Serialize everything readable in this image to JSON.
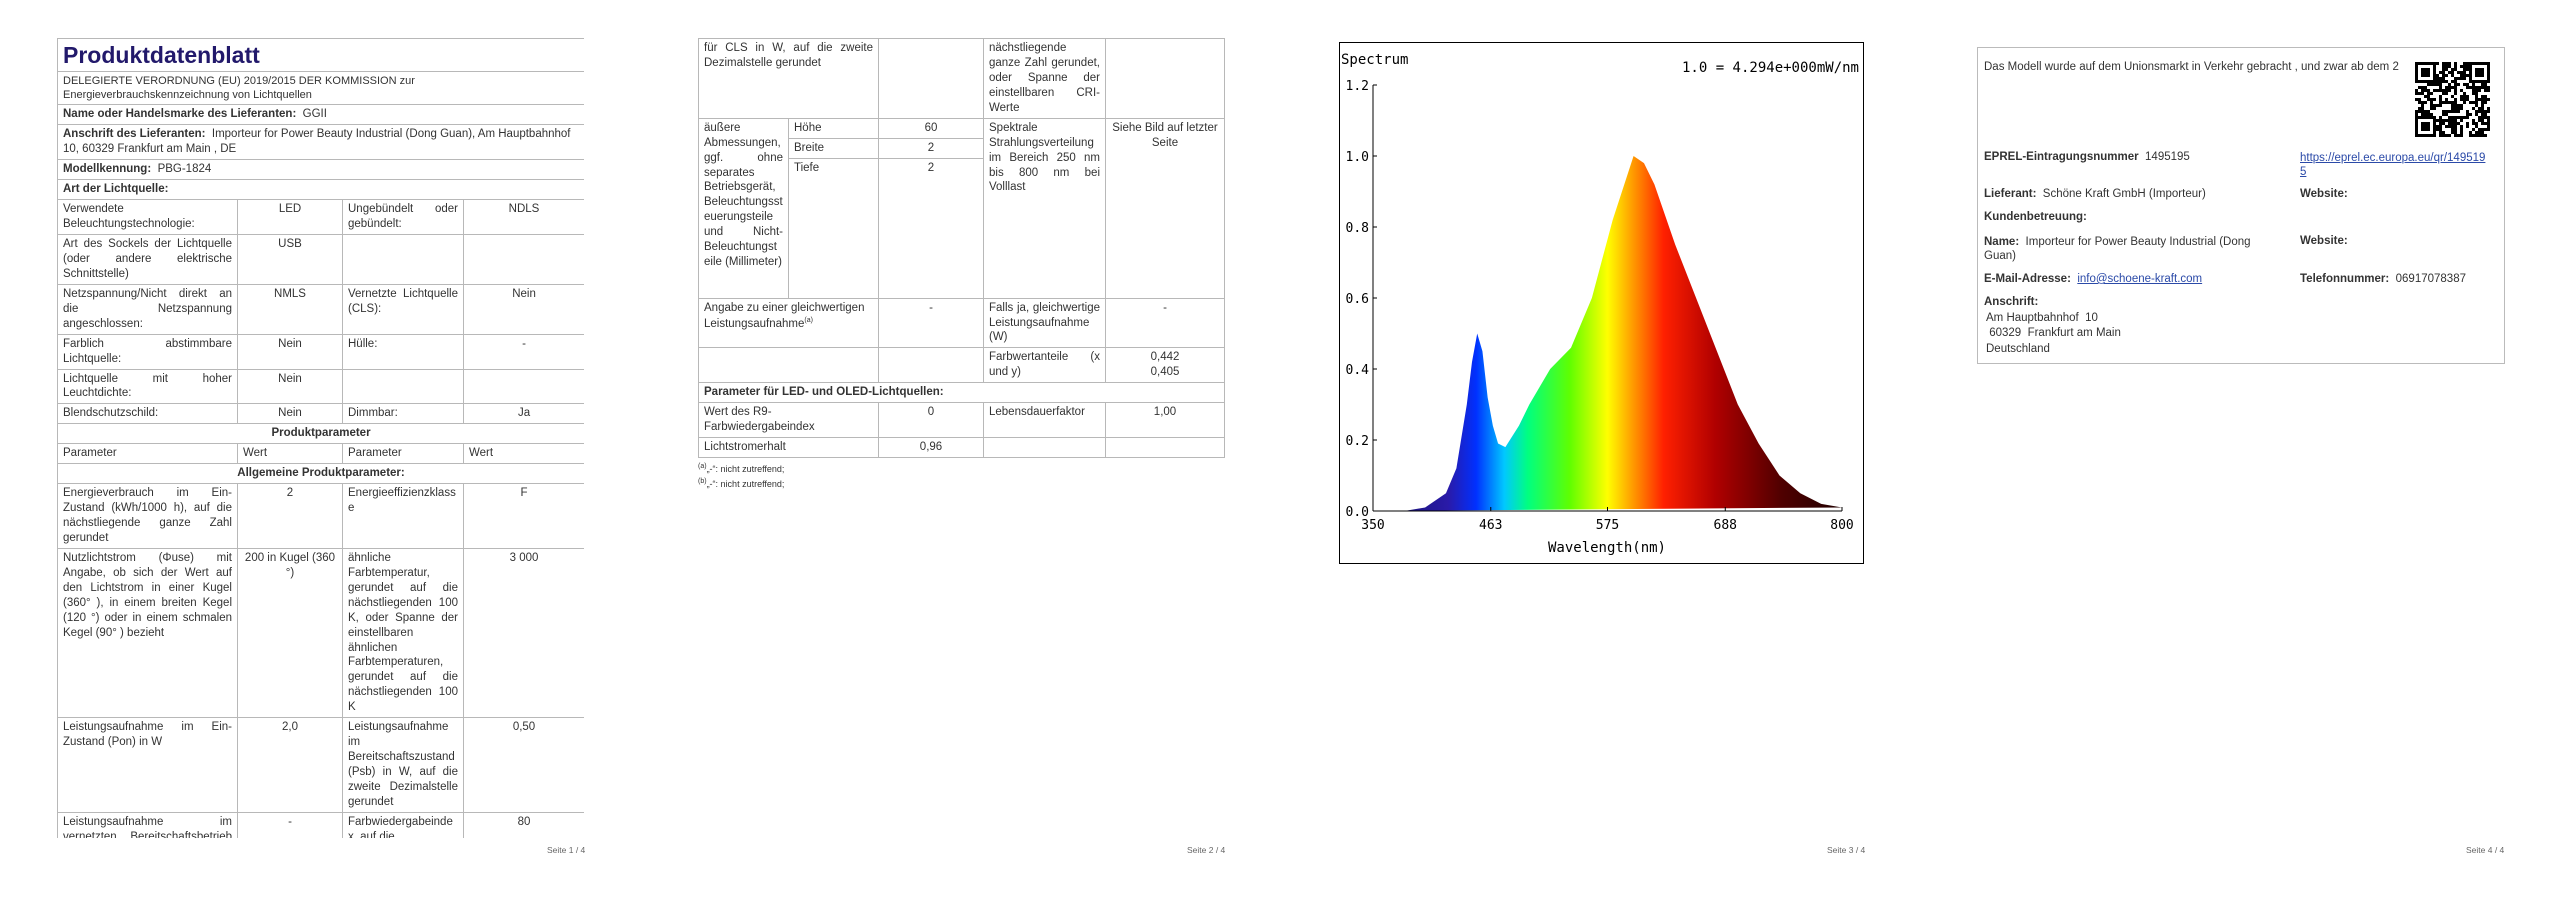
{
  "page1": {
    "title": "Produktdatenblatt",
    "regulation": "DELEGIERTE VERORDNUNG (EU) 2019/2015 DER KOMMISSION zur Energieverbrauchskennzeichnung von Lichtquellen",
    "supplier_name": {
      "label": "Name oder Handelsmarke des Lieferanten:",
      "value": "GGII"
    },
    "supplier_address": {
      "label": "Anschrift des Lieferanten:",
      "value": "Importeur for Power Beauty Industrial (Dong Guan), Am Hauptbahnhof 10, 60329 Frankfurt am Main , DE"
    },
    "model": {
      "label": "Modellkennung:",
      "value": "PBG-1824"
    },
    "light_source_type": "Art der Lichtquelle:",
    "type_rows": [
      [
        "Verwendete Beleuchtungstechnologie:",
        "LED",
        "Ungebündelt oder gebündelt:",
        "NDLS"
      ],
      [
        "Art des Sockels der Lichtquelle (oder andere elektrische Schnittstelle)",
        "USB"
      ],
      [
        "Netzspannung/Nicht direkt an die Netzspannung angeschlossen:",
        "NMLS",
        "Vernetzte Lichtquelle (CLS):",
        "Nein"
      ],
      [
        "Farblich abstimmbare Lichtquelle:",
        "Nein",
        "Hülle:",
        "-"
      ],
      [
        "Lichtquelle mit hoher Leuchtdichte:",
        "Nein"
      ],
      [
        "Blendschutzschild:",
        "Nein",
        "Dimmbar:",
        "Ja"
      ]
    ],
    "product_parameters": "Produktparameter",
    "header": [
      "Parameter",
      "Wert",
      "Parameter",
      "Wert"
    ],
    "general_parameters": "Allgemeine Produktparameter:",
    "param_rows": [
      [
        "Energieverbrauch im Ein-Zustand (kWh/1000 h), auf die nächstliegende ganze Zahl gerundet",
        "2",
        "Energieeffizienzklasse",
        "F"
      ],
      [
        "Nutzlichtstrom (Φuse) mit Angabe, ob sich der Wert auf den Lichtstrom in einer Kugel (360° ), in einem breiten Kegel (120 °) oder in einem schmalen Kegel (90° ) bezieht",
        "200 in Kugel (360 °)",
        "ähnliche Farbtemperatur, gerundet auf die nächstliegenden 100 K, oder Spanne der einstellbaren ähnlichen Farbtemperaturen, gerundet auf die nächstliegenden 100 K",
        "3 000"
      ],
      [
        "Leistungsaufnahme im Ein-Zustand (Pon) in W",
        "2,0",
        "Leistungsaufnahme im Bereitschaftszustand (Psb) in W, auf die zweite Dezimalstelle gerundet",
        "0,50"
      ],
      [
        "Leistungsaufnahme im vernetzten Bereitschaftsbetrieb (Pnet)",
        "-",
        "Farbwiedergabeindex, auf die",
        "80"
      ]
    ]
  },
  "page2": {
    "cls_power": "für CLS in W, auf die zweite Dezimalstelle gerundet",
    "cri_cont": "nächstliegende ganze Zahl gerundet, oder Spanne der einstellbaren CRI-Werte",
    "dimensions": {
      "label": "äußere Abmessungen, ggf. ohne separates Betriebsgerät, Beleuchtungssteuerungsteile und Nicht-Beleuchtungsteile (Millimeter)",
      "items": [
        {
          "name": "Höhe",
          "value": "60"
        },
        {
          "name": "Breite",
          "value": "2"
        },
        {
          "name": "Tiefe",
          "value": "2"
        }
      ]
    },
    "spectral": {
      "label": "Spektrale Strahlungsverteilung im Bereich 250 nm bis 800 nm bei Volllast",
      "value": "Siehe Bild auf letzter Seite"
    },
    "equivalent": {
      "label": "Angabe zu einer gleichwertigen Leistungsaufnahme",
      "note": "(a)",
      "value": "-",
      "if_yes": "Falls ja, gleichwertige Leistungsaufnahme (W)",
      "if_yes_value": "-"
    },
    "chromaticity": {
      "label": "Farbwertanteile (x und y)",
      "x": "0,442",
      "y": "0,405"
    },
    "led_heading": "Parameter für LED- und OLED-Lichtquellen:",
    "r9": {
      "label": "Wert des R9-Farbwiedergabeindex",
      "value": "0"
    },
    "lifetime": {
      "label": "Lebensdauerfaktor",
      "value": "1,00"
    },
    "maintenance": {
      "label": "Lichtstromerhalt",
      "value": "0,96"
    },
    "footnotes": [
      {
        "mark": "(a)",
        "text": "„-“: nicht zutreffend;"
      },
      {
        "mark": "(b)",
        "text": "„-“: nicht zutreffend;"
      }
    ]
  },
  "chart_data": {
    "type": "area",
    "title": "Spectrum",
    "annotation": "1.0 = 4.294e+000mW/nm",
    "x_label": "Wavelength(nm)",
    "x": [
      350,
      380,
      400,
      420,
      430,
      440,
      445,
      450,
      455,
      460,
      465,
      470,
      477,
      490,
      500,
      520,
      540,
      560,
      580,
      600,
      610,
      620,
      640,
      660,
      680,
      700,
      720,
      740,
      760,
      780,
      800
    ],
    "series": [
      {
        "name": "Spectrum",
        "values": [
          0,
          0,
          0.01,
          0.05,
          0.12,
          0.3,
          0.42,
          0.5,
          0.45,
          0.32,
          0.24,
          0.19,
          0.18,
          0.24,
          0.3,
          0.4,
          0.46,
          0.6,
          0.82,
          1.0,
          0.98,
          0.92,
          0.75,
          0.6,
          0.45,
          0.3,
          0.19,
          0.1,
          0.05,
          0.02,
          0.01
        ]
      }
    ],
    "xlim": [
      350,
      800
    ],
    "xticks": [
      350,
      463,
      575,
      688,
      800
    ],
    "ylim": [
      0,
      1.2
    ],
    "yticks": [
      {
        "value": 0,
        "label": "0.0"
      },
      0.2,
      0.4,
      0.6,
      0.8,
      {
        "value": 1,
        "label": "1.0"
      },
      1.2
    ],
    "grid": false
  },
  "page4": {
    "market_date": "Das Modell wurde auf dem Unionsmarkt in Verkehr gebracht , und zwar ab dem 2",
    "eprel": {
      "label": "EPREL-Eintragungsnummer",
      "value": "1495195",
      "link": "https://eprel.ec.europa.eu/qr/1495195"
    },
    "supplier": {
      "label": "Lieferant:",
      "value": "Schöne Kraft GmbH (Importeur)"
    },
    "website": "Website:",
    "customer_service": "Kundenbetreuung:",
    "name": {
      "label": "Name:",
      "value": "Importeur for Power Beauty Industrial (Dong Guan)"
    },
    "email": {
      "label": "E-Mail-Adresse:",
      "value": "info@schoene-kraft.com"
    },
    "phone": {
      "label": "Telefonnummer:",
      "value": "06917078387"
    },
    "address": {
      "label": "Anschrift:",
      "lines": [
        "Am Hauptbahnhof  10",
        " 60329  Frankfurt am Main",
        "Deutschland"
      ]
    }
  },
  "footers": [
    "Seite 1 / 4",
    "Seite 2 / 4",
    "Seite 3 / 4",
    "Seite 4 / 4"
  ]
}
